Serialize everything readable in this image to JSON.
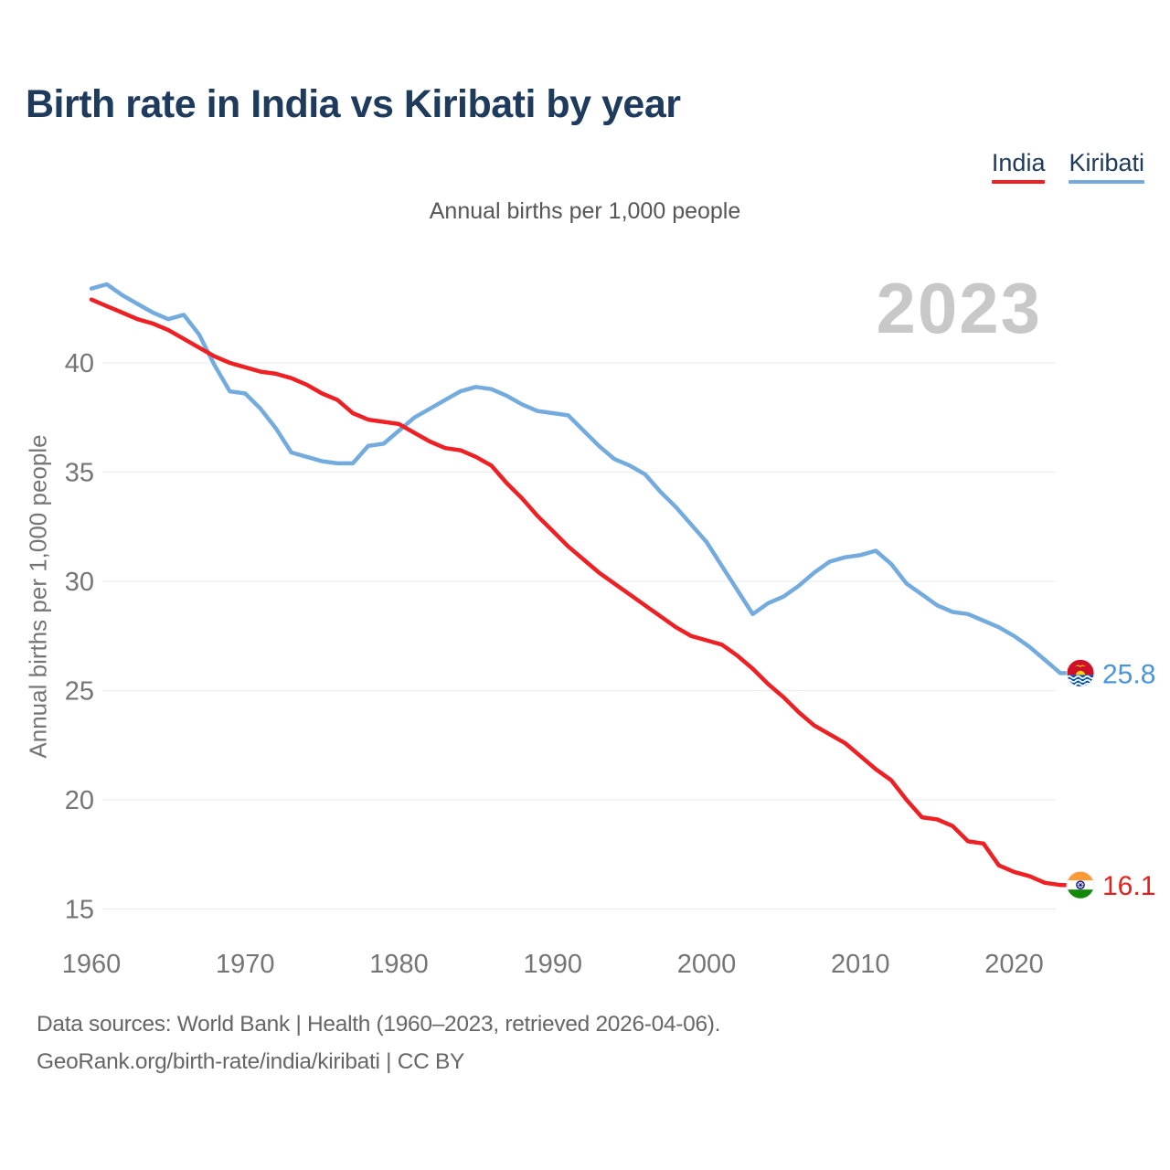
{
  "page": {
    "title": "Birth rate in India vs Kiribati by year",
    "subtitle": "Annual births per 1,000 people",
    "watermark": "2023"
  },
  "legend": {
    "items": [
      {
        "label": "India",
        "color": "#ee2024"
      },
      {
        "label": "Kiribati",
        "color": "#74abdf"
      }
    ]
  },
  "axes": {
    "y_label": "Annual births per 1,000 people",
    "y_ticks": [
      40,
      35,
      30,
      25,
      20,
      15
    ],
    "x_ticks": [
      1960,
      1970,
      1980,
      1990,
      2000,
      2010,
      2020
    ]
  },
  "end_labels": {
    "kiribati": {
      "value": "25.8",
      "color": "#4a94da",
      "flag": "kiribati-flag"
    },
    "india": {
      "value": "16.1",
      "color": "#e8201d",
      "flag": "india-flag"
    }
  },
  "footer": {
    "line1": "Data sources: World Bank | Health (1960–2023, retrieved 2026-04-06).",
    "line2": "GeoRank.org/birth-rate/india/kiribati | CC BY"
  },
  "chart_data": {
    "type": "line",
    "title": "Birth rate in India vs Kiribati by year",
    "subtitle": "Annual births per 1,000 people",
    "ylabel": "Annual births per 1,000 people",
    "xlim": [
      1960,
      2023
    ],
    "ylim": [
      14.5,
      44
    ],
    "grid": true,
    "legend_position": "top-right",
    "x": [
      1960,
      1961,
      1962,
      1963,
      1964,
      1965,
      1966,
      1967,
      1968,
      1969,
      1970,
      1971,
      1972,
      1973,
      1974,
      1975,
      1976,
      1977,
      1978,
      1979,
      1980,
      1981,
      1982,
      1983,
      1984,
      1985,
      1986,
      1987,
      1988,
      1989,
      1990,
      1991,
      1992,
      1993,
      1994,
      1995,
      1996,
      1997,
      1998,
      1999,
      2000,
      2001,
      2002,
      2003,
      2004,
      2005,
      2006,
      2007,
      2008,
      2009,
      2010,
      2011,
      2012,
      2013,
      2014,
      2015,
      2016,
      2017,
      2018,
      2019,
      2020,
      2021,
      2022,
      2023
    ],
    "series": [
      {
        "name": "India",
        "color": "#ee2024",
        "end_label": "16.1",
        "values": [
          42.9,
          42.6,
          42.3,
          42.0,
          41.8,
          41.5,
          41.1,
          40.7,
          40.3,
          40.0,
          39.8,
          39.6,
          39.5,
          39.3,
          39.0,
          38.6,
          38.3,
          37.7,
          37.4,
          37.3,
          37.2,
          36.8,
          36.4,
          36.1,
          36.0,
          35.7,
          35.3,
          34.5,
          33.8,
          33.0,
          32.3,
          31.6,
          31.0,
          30.4,
          29.9,
          29.4,
          28.9,
          28.4,
          27.9,
          27.5,
          27.3,
          27.1,
          26.6,
          26.0,
          25.3,
          24.7,
          24.0,
          23.4,
          23.0,
          22.6,
          22.0,
          21.4,
          20.9,
          20.0,
          19.2,
          19.1,
          18.8,
          18.1,
          18.0,
          17.0,
          16.7,
          16.5,
          16.2,
          16.1
        ]
      },
      {
        "name": "Kiribati",
        "color": "#74abdf",
        "end_label": "25.8",
        "values": [
          43.4,
          43.6,
          43.1,
          42.7,
          42.3,
          42.0,
          42.2,
          41.3,
          39.9,
          38.7,
          38.6,
          37.9,
          37.0,
          35.9,
          35.7,
          35.5,
          35.4,
          35.4,
          36.2,
          36.3,
          36.9,
          37.5,
          37.9,
          38.3,
          38.7,
          38.9,
          38.8,
          38.5,
          38.1,
          37.8,
          37.7,
          37.6,
          36.9,
          36.2,
          35.6,
          35.3,
          34.9,
          34.1,
          33.4,
          32.6,
          31.8,
          30.7,
          29.6,
          28.5,
          29.0,
          29.3,
          29.8,
          30.4,
          30.9,
          31.1,
          31.2,
          31.4,
          30.8,
          29.9,
          29.4,
          28.9,
          28.6,
          28.5,
          28.2,
          27.9,
          27.5,
          27.0,
          26.4,
          25.8
        ]
      }
    ]
  }
}
